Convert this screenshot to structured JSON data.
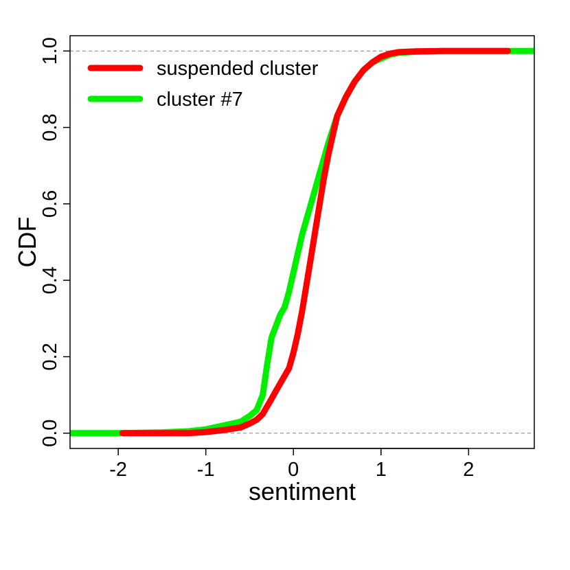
{
  "chart_data": {
    "type": "line",
    "title": "",
    "xlabel": "sentiment",
    "ylabel": "CDF",
    "xlim": [
      -2.55,
      2.75
    ],
    "ylim": [
      -0.04,
      1.04
    ],
    "x_ticks": [
      {
        "value": -2,
        "label": "-2"
      },
      {
        "value": -1,
        "label": "-1"
      },
      {
        "value": 0,
        "label": "0"
      },
      {
        "value": 1,
        "label": "1"
      },
      {
        "value": 2,
        "label": "2"
      }
    ],
    "y_ticks": [
      {
        "value": 0,
        "label": "0.0"
      },
      {
        "value": 0.2,
        "label": "0.2"
      },
      {
        "value": 0.4,
        "label": "0.4"
      },
      {
        "value": 0.6,
        "label": "0.6"
      },
      {
        "value": 0.8,
        "label": "0.8"
      },
      {
        "value": 1,
        "label": "1.0"
      }
    ],
    "reference_lines": [
      0,
      1
    ],
    "grid": false,
    "legend_position": "top-left",
    "series": [
      {
        "name": "cluster #7",
        "color": "#00ee00",
        "x": [
          -2.55,
          -2.0,
          -1.5,
          -1.2,
          -1.0,
          -0.8,
          -0.6,
          -0.5,
          -0.42,
          -0.35,
          -0.3,
          -0.25,
          -0.2,
          -0.15,
          -0.1,
          -0.05,
          0.0,
          0.05,
          0.1,
          0.15,
          0.2,
          0.3,
          0.4,
          0.5,
          0.6,
          0.7,
          0.8,
          0.9,
          1.0,
          1.1,
          1.2,
          1.4,
          1.7,
          2.0,
          2.5,
          2.75
        ],
        "y": [
          0.0,
          0.0,
          0.002,
          0.005,
          0.01,
          0.02,
          0.03,
          0.045,
          0.06,
          0.1,
          0.18,
          0.25,
          0.28,
          0.31,
          0.33,
          0.37,
          0.42,
          0.47,
          0.52,
          0.56,
          0.6,
          0.68,
          0.76,
          0.83,
          0.88,
          0.92,
          0.95,
          0.97,
          0.98,
          0.99,
          0.995,
          0.998,
          1.0,
          1.0,
          1.0,
          1.0
        ]
      },
      {
        "name": "suspended cluster",
        "color": "#ff0000",
        "x": [
          -1.95,
          -1.5,
          -1.2,
          -1.0,
          -0.8,
          -0.6,
          -0.5,
          -0.42,
          -0.35,
          -0.3,
          -0.25,
          -0.2,
          -0.15,
          -0.1,
          -0.05,
          0.0,
          0.05,
          0.1,
          0.15,
          0.2,
          0.25,
          0.3,
          0.35,
          0.4,
          0.45,
          0.5,
          0.6,
          0.7,
          0.8,
          0.9,
          1.0,
          1.1,
          1.2,
          1.4,
          1.7,
          2.0,
          2.45
        ],
        "y": [
          0.0,
          0.0,
          0.0,
          0.003,
          0.008,
          0.015,
          0.025,
          0.035,
          0.05,
          0.07,
          0.09,
          0.11,
          0.13,
          0.15,
          0.17,
          0.21,
          0.26,
          0.32,
          0.39,
          0.46,
          0.53,
          0.6,
          0.67,
          0.73,
          0.78,
          0.83,
          0.88,
          0.92,
          0.95,
          0.97,
          0.985,
          0.993,
          0.997,
          0.999,
          1.0,
          1.0,
          1.0
        ]
      }
    ]
  }
}
